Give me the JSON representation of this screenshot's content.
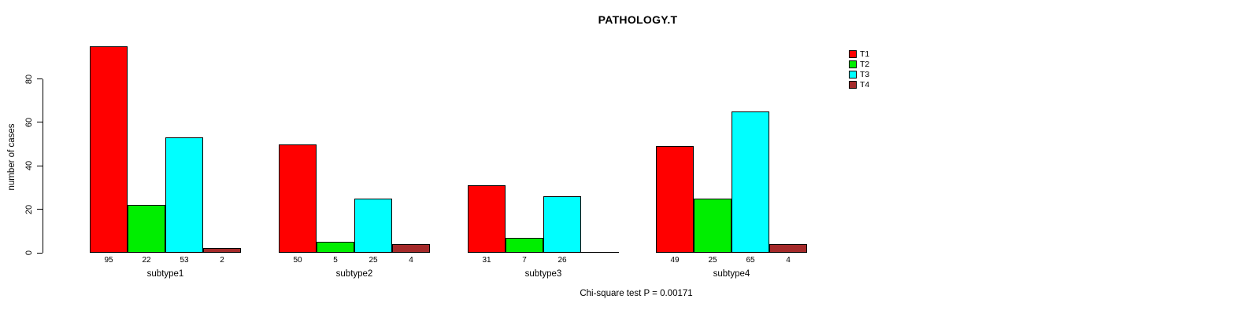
{
  "chart_data": {
    "type": "bar",
    "title": "PATHOLOGY.T",
    "ylabel": "number of cases",
    "xlabel": "",
    "categories": [
      "subtype1",
      "subtype2",
      "subtype3",
      "subtype4"
    ],
    "series": [
      {
        "name": "T1",
        "color": "#FF0000",
        "values": [
          95,
          50,
          31,
          49
        ]
      },
      {
        "name": "T2",
        "color": "#00EE00",
        "values": [
          22,
          5,
          7,
          25
        ]
      },
      {
        "name": "T3",
        "color": "#00FFFF",
        "values": [
          53,
          25,
          26,
          65
        ]
      },
      {
        "name": "T4",
        "color": "#A52A2A",
        "values": [
          2,
          4,
          0,
          4
        ]
      }
    ],
    "yticks": [
      0,
      20,
      40,
      60,
      80
    ],
    "ylim": [
      0,
      95
    ],
    "grid": false,
    "legend_position": "top-right",
    "bar_value_labels_shown": true,
    "zero_values_unlabeled": true,
    "annotation": "Chi-square test P = 0.00171"
  }
}
